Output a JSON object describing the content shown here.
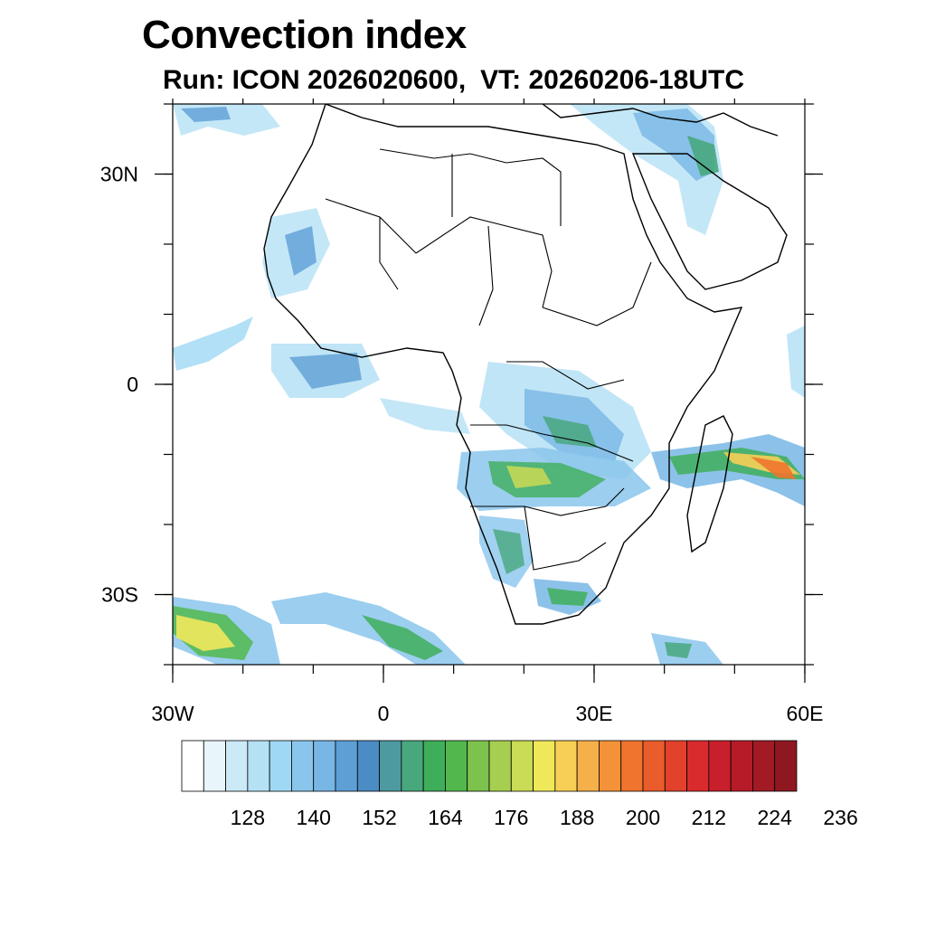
{
  "title": "Convection index",
  "subtitle": {
    "run": "Run: ICON 2026020600,",
    "valid_time": "VT: 20260206-18UTC"
  },
  "map": {
    "region": "Africa",
    "lon_range": [
      -30,
      60
    ],
    "lat_range": [
      -40,
      40
    ],
    "lon_ticks": [
      {
        "value": -30,
        "label": "30W"
      },
      {
        "value": 0,
        "label": "0"
      },
      {
        "value": 30,
        "label": "30E"
      },
      {
        "value": 60,
        "label": "60E"
      }
    ],
    "lat_ticks": [
      {
        "value": 30,
        "label": "30N"
      },
      {
        "value": 0,
        "label": "0"
      },
      {
        "value": -30,
        "label": "30S"
      }
    ]
  },
  "colorbar": {
    "colors": [
      "#ffffff",
      "#e8f5fb",
      "#cce9f7",
      "#b5e1f5",
      "#9fd8f4",
      "#8ac6ec",
      "#78b7e5",
      "#5e9fd6",
      "#4b8cc4",
      "#4e9aa1",
      "#49a77e",
      "#3fae5a",
      "#52b84e",
      "#7cc24d",
      "#a6cf4f",
      "#cadb55",
      "#efe85b",
      "#f7cf56",
      "#f6b04a",
      "#f49239",
      "#f0742e",
      "#ea5c2b",
      "#e2412b",
      "#d92b2d",
      "#c81f2c",
      "#b61b28",
      "#a21a24",
      "#8e1720"
    ],
    "labels": [
      "128",
      "140",
      "152",
      "164",
      "176",
      "188",
      "200",
      "212",
      "224",
      "236"
    ],
    "label_values": [
      128,
      140,
      152,
      164,
      176,
      188,
      200,
      212,
      224,
      236
    ]
  }
}
